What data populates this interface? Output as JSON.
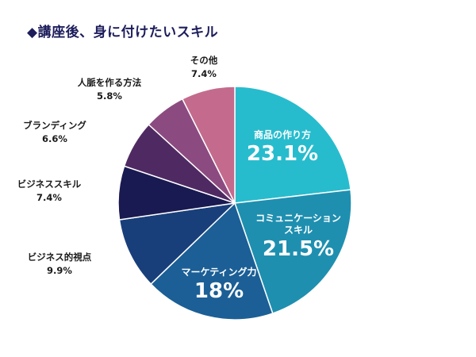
{
  "title": "◆講座後、身に付けたいスキル",
  "chart_data": {
    "type": "pie",
    "start": "top",
    "direction": "clockwise",
    "slices": [
      {
        "label": "商品の作り方",
        "value": 23.1,
        "display": "23.1%",
        "color": "#27bccd",
        "label_pos": "inside"
      },
      {
        "label": "コミュニケーションスキル",
        "label_lines": [
          "コミュニケーション",
          "スキル"
        ],
        "value": 21.5,
        "display": "21.5%",
        "color": "#1f8fb0",
        "label_pos": "inside"
      },
      {
        "label": "マーケティング力",
        "value": 18,
        "display": "18%",
        "color": "#1b5f96",
        "label_pos": "inside"
      },
      {
        "label": "ビジネス的視点",
        "value": 9.9,
        "display": "9.9%",
        "color": "#193f7a",
        "label_pos": "outside"
      },
      {
        "label": "ビジネススキル",
        "value": 7.4,
        "display": "7.4%",
        "color": "#1a1a52",
        "label_pos": "outside"
      },
      {
        "label": "ブランディング",
        "value": 6.6,
        "display": "6.6%",
        "color": "#4f2a62",
        "label_pos": "outside"
      },
      {
        "label": "人脈を作る方法",
        "value": 5.8,
        "display": "5.8%",
        "color": "#8c4b80",
        "label_pos": "outside"
      },
      {
        "label": "その他",
        "value": 7.4,
        "display": "7.4%",
        "color": "#c46b8d",
        "label_pos": "outside"
      }
    ]
  }
}
